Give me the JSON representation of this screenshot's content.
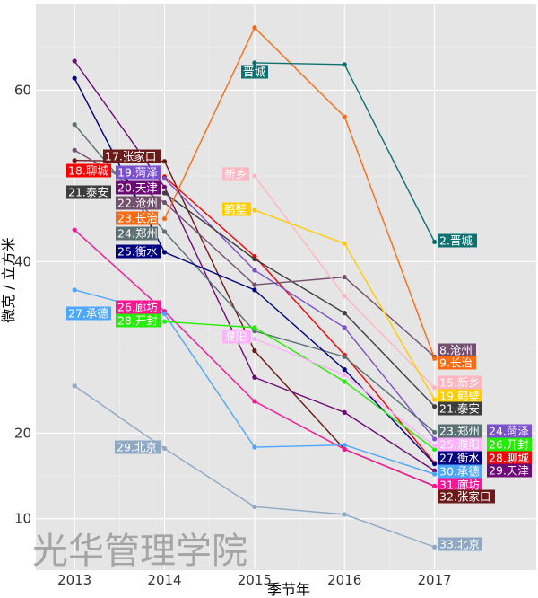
{
  "chart_data": {
    "type": "line",
    "xlabel": "季节年",
    "ylabel": "微克 / 立方米",
    "x": [
      2013,
      2014,
      2015,
      2016,
      2017
    ],
    "x_ticks": [
      "2013",
      "2014",
      "2015",
      "2016",
      "2017"
    ],
    "y_ticks": [
      10,
      20,
      40,
      60
    ],
    "ylim": [
      4,
      70
    ],
    "xlim": [
      2012.57,
      2018.13
    ],
    "grid": true,
    "legend": "none",
    "background": "#e5e5e5",
    "watermark": "光华管理学院",
    "series": [
      {
        "name": "张家口",
        "color": "#6b1a1a",
        "values": [
          51.8,
          51.7,
          29.6,
          18.1,
          13.8
        ]
      },
      {
        "name": "聊城",
        "color": "#ff0000",
        "values": [
          null,
          49.9,
          40.6,
          29.1,
          16.5
        ]
      },
      {
        "name": "菏泽",
        "color": "#7a50d0",
        "values": [
          null,
          49.7,
          39.0,
          32.3,
          19.3
        ]
      },
      {
        "name": "天津",
        "color": "#6e0a78",
        "values": [
          63.4,
          48.7,
          26.5,
          22.4,
          15.6
        ]
      },
      {
        "name": "泰安",
        "color": "#3d3d3d",
        "values": [
          null,
          48.0,
          40.3,
          34.0,
          23.1
        ]
      },
      {
        "name": "沧州",
        "color": "#73506e",
        "values": [
          53.0,
          46.9,
          37.3,
          38.2,
          28.9
        ]
      },
      {
        "name": "长治",
        "color": "#ff6a13",
        "values": [
          null,
          45.0,
          67.3,
          56.9,
          28.7
        ]
      },
      {
        "name": "郑州",
        "color": "#5a7073",
        "values": [
          56.0,
          43.5,
          31.9,
          28.9,
          20.1
        ]
      },
      {
        "name": "衡水",
        "color": "#000080",
        "values": [
          61.4,
          41.1,
          36.7,
          27.4,
          16.4
        ]
      },
      {
        "name": "廊坊",
        "color": "#ff1493",
        "values": [
          43.7,
          34.2,
          23.7,
          18.1,
          13.8
        ]
      },
      {
        "name": "承德",
        "color": "#4da6ff",
        "values": [
          36.7,
          33.9,
          18.35,
          18.6,
          15.2
        ]
      },
      {
        "name": "开封",
        "color": "#22ee00",
        "values": [
          null,
          33.0,
          32.3,
          26.0,
          18.1
        ]
      },
      {
        "name": "北京",
        "color": "#8fa8c4",
        "values": [
          25.5,
          18.2,
          11.4,
          10.5,
          6.7
        ]
      },
      {
        "name": "晋城",
        "color": "#0e716f",
        "values": [
          null,
          null,
          63.2,
          63.0,
          42.3
        ]
      },
      {
        "name": "新乡",
        "color": "#ffb6c1",
        "values": [
          null,
          null,
          50.0,
          36.0,
          25.3
        ]
      },
      {
        "name": "鹤壁",
        "color": "#ffcc00",
        "values": [
          null,
          null,
          46.0,
          42.1,
          23.9
        ]
      },
      {
        "name": "濮阳",
        "color": "#ffb0ff",
        "values": [
          null,
          null,
          31.0,
          26.8,
          18.5
        ]
      }
    ],
    "labels": [
      {
        "text": "18.聊城",
        "color": "#ff0000"
      },
      {
        "text": "21.泰安",
        "color": "#3d3d3d"
      },
      {
        "text": "27.承德",
        "color": "#4da6ff"
      },
      {
        "text": "29.北京",
        "color": "#8fa8c4"
      },
      {
        "text": "17.张家口",
        "color": "#6b1a1a"
      },
      {
        "text": "19.菏泽",
        "color": "#7a50d0"
      },
      {
        "text": "20.天津",
        "color": "#6e0a78"
      },
      {
        "text": "22.沧州",
        "color": "#73506e"
      },
      {
        "text": "23.长治",
        "color": "#ff6a13"
      },
      {
        "text": "24.郑州",
        "color": "#5a7073"
      },
      {
        "text": "25.衡水",
        "color": "#000080"
      },
      {
        "text": "26.廊坊",
        "color": "#ff1493"
      },
      {
        "text": "28.开封",
        "color": "#22ee00"
      },
      {
        "text": "晋城",
        "color": "#0e716f"
      },
      {
        "text": "新乡",
        "color": "#ffb6c1"
      },
      {
        "text": "鹤壁",
        "color": "#ffcc00"
      },
      {
        "text": "濮阳",
        "color": "#ffb0ff"
      },
      {
        "text": "2.晋城",
        "color": "#0e716f"
      },
      {
        "text": "8.沧州",
        "color": "#73506e"
      },
      {
        "text": "9.长治",
        "color": "#ff6a13"
      },
      {
        "text": "15.新乡",
        "color": "#ffb6c1"
      },
      {
        "text": "19.鹤壁",
        "color": "#ffcc00"
      },
      {
        "text": "21.泰安",
        "color": "#3d3d3d"
      },
      {
        "text": "23.郑州",
        "color": "#5a7073"
      },
      {
        "text": "24.菏泽",
        "color": "#7a50d0"
      },
      {
        "text": "25.濮阳",
        "color": "#ffb0ff"
      },
      {
        "text": "26.开封",
        "color": "#22ee00"
      },
      {
        "text": "27.衡水",
        "color": "#000080"
      },
      {
        "text": "28.聊城",
        "color": "#ff0000"
      },
      {
        "text": "29.天津",
        "color": "#6e0a78"
      },
      {
        "text": "30.承德",
        "color": "#4da6ff"
      },
      {
        "text": "31.廊坊",
        "color": "#ff1493"
      },
      {
        "text": "32.张家口",
        "color": "#6b1a1a"
      },
      {
        "text": "33.北京",
        "color": "#8fa8c4"
      }
    ]
  }
}
